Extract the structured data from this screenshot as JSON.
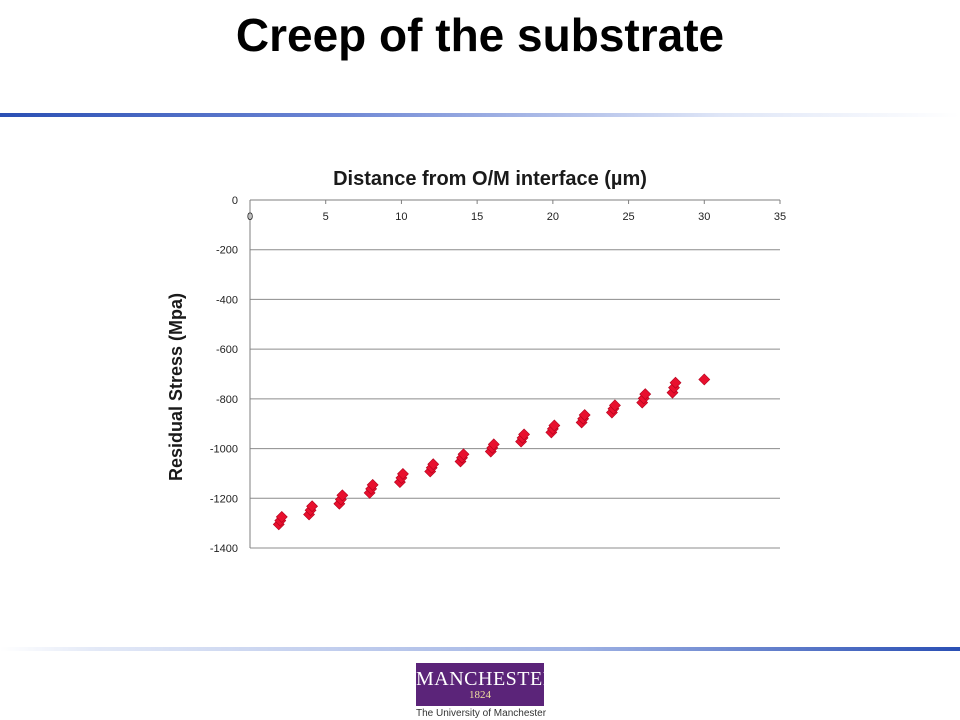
{
  "slide": {
    "title": "Creep of the substrate"
  },
  "logo": {
    "name": "MANCHESTER",
    "year": "1824",
    "subtitle": "The University of Manchester",
    "color": "#5b2479"
  },
  "chart_data": {
    "type": "scatter",
    "title": "Distance from O/M interface (µm)",
    "xlabel": "",
    "ylabel": "Residual Stress (Mpa)",
    "xlim": [
      0,
      35
    ],
    "ylim": [
      -1400,
      0
    ],
    "x_ticks": [
      "0",
      "5",
      "10",
      "15",
      "20",
      "25",
      "30",
      "35"
    ],
    "y_ticks": [
      "0",
      "-200",
      "-400",
      "-600",
      "-800",
      "-1000",
      "-1200",
      "-1400"
    ],
    "x_axis_position": "top",
    "grid": "horizontal",
    "legend": "none",
    "marker": "diamond",
    "marker_color": "#e8102e",
    "points": [
      {
        "x": 1.9,
        "y": -1305
      },
      {
        "x": 2.0,
        "y": -1290
      },
      {
        "x": 2.1,
        "y": -1275
      },
      {
        "x": 3.9,
        "y": -1265
      },
      {
        "x": 4.0,
        "y": -1248
      },
      {
        "x": 4.1,
        "y": -1232
      },
      {
        "x": 5.9,
        "y": -1222
      },
      {
        "x": 6.0,
        "y": -1205
      },
      {
        "x": 6.1,
        "y": -1188
      },
      {
        "x": 7.9,
        "y": -1178
      },
      {
        "x": 8.0,
        "y": -1162
      },
      {
        "x": 8.1,
        "y": -1146
      },
      {
        "x": 9.9,
        "y": -1135
      },
      {
        "x": 10.0,
        "y": -1118
      },
      {
        "x": 10.1,
        "y": -1102
      },
      {
        "x": 11.9,
        "y": -1092
      },
      {
        "x": 12.0,
        "y": -1077
      },
      {
        "x": 12.1,
        "y": -1063
      },
      {
        "x": 13.9,
        "y": -1052
      },
      {
        "x": 14.0,
        "y": -1037
      },
      {
        "x": 14.1,
        "y": -1023
      },
      {
        "x": 15.9,
        "y": -1012
      },
      {
        "x": 16.0,
        "y": -997
      },
      {
        "x": 16.1,
        "y": -983
      },
      {
        "x": 17.9,
        "y": -972
      },
      {
        "x": 18.0,
        "y": -957
      },
      {
        "x": 18.1,
        "y": -943
      },
      {
        "x": 19.9,
        "y": -935
      },
      {
        "x": 20.0,
        "y": -921
      },
      {
        "x": 20.1,
        "y": -907
      },
      {
        "x": 21.9,
        "y": -895
      },
      {
        "x": 22.0,
        "y": -880
      },
      {
        "x": 22.1,
        "y": -865
      },
      {
        "x": 23.9,
        "y": -855
      },
      {
        "x": 24.0,
        "y": -840
      },
      {
        "x": 24.1,
        "y": -826
      },
      {
        "x": 25.9,
        "y": -815
      },
      {
        "x": 26.0,
        "y": -798
      },
      {
        "x": 26.1,
        "y": -781
      },
      {
        "x": 27.9,
        "y": -775
      },
      {
        "x": 28.0,
        "y": -755
      },
      {
        "x": 28.1,
        "y": -735
      },
      {
        "x": 30.0,
        "y": -722
      }
    ]
  }
}
